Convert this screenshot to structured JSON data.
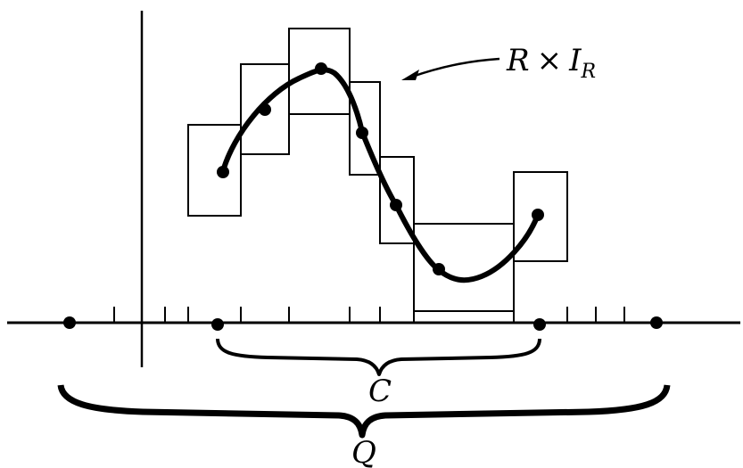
{
  "labels": {
    "curve_label_main": "R",
    "curve_label_times": "×",
    "curve_label_I": "I",
    "curve_label_sub": "R",
    "brace_small": "C",
    "brace_large": "Q"
  }
}
